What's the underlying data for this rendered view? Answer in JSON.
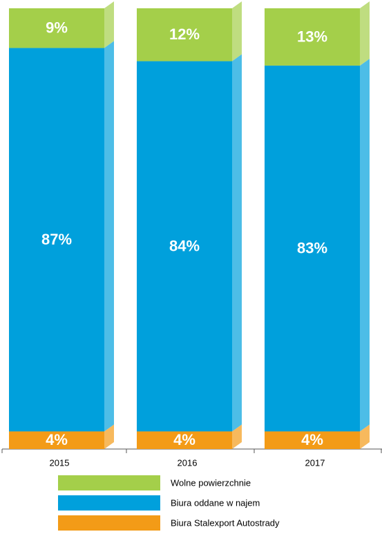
{
  "chart_data": {
    "type": "stacked-bar-3d",
    "categories": [
      "2015",
      "2016",
      "2017"
    ],
    "series": [
      {
        "name": "Wolne powierzchnie",
        "color": "#a4cf4a",
        "values": [
          9,
          12,
          13
        ],
        "value_labels": [
          "9%",
          "12%",
          "13%"
        ]
      },
      {
        "name": "Biura oddane w najem",
        "color": "#00a0dc",
        "values": [
          87,
          84,
          83
        ],
        "value_labels": [
          "87%",
          "84%",
          "83%"
        ]
      },
      {
        "name": "Biura Stalexport Autostrady",
        "color": "#f39b17",
        "values": [
          4,
          4,
          4
        ],
        "value_labels": [
          "4%",
          "4%",
          "4%"
        ]
      }
    ]
  }
}
